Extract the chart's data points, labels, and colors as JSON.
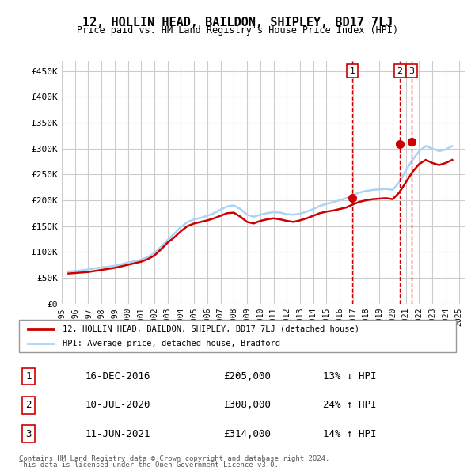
{
  "title": "12, HOLLIN HEAD, BAILDON, SHIPLEY, BD17 7LJ",
  "subtitle": "Price paid vs. HM Land Registry's House Price Index (HPI)",
  "ylabel_ticks": [
    "£0",
    "£50K",
    "£100K",
    "£150K",
    "£200K",
    "£250K",
    "£300K",
    "£350K",
    "£400K",
    "£450K"
  ],
  "ytick_values": [
    0,
    50000,
    100000,
    150000,
    200000,
    250000,
    300000,
    350000,
    400000,
    450000
  ],
  "ylim": [
    0,
    470000
  ],
  "xlim_start": 1995.0,
  "xlim_end": 2025.5,
  "grid_color": "#cccccc",
  "hpi_color": "#aad4f5",
  "price_color": "#cc0000",
  "transaction_color": "#cc0000",
  "dashed_line_color": "#cc0000",
  "background_color": "#ffffff",
  "legend_label_red": "12, HOLLIN HEAD, BAILDON, SHIPLEY, BD17 7LJ (detached house)",
  "legend_label_blue": "HPI: Average price, detached house, Bradford",
  "transactions": [
    {
      "label": "1",
      "date": "16-DEC-2016",
      "price": 205000,
      "hpi_diff": "13% ↓ HPI",
      "x": 2016.96
    },
    {
      "label": "2",
      "date": "10-JUL-2020",
      "price": 308000,
      "hpi_diff": "24% ↑ HPI",
      "x": 2020.53
    },
    {
      "label": "3",
      "date": "11-JUN-2021",
      "price": 314000,
      "hpi_diff": "14% ↑ HPI",
      "x": 2021.44
    }
  ],
  "footer_line1": "Contains HM Land Registry data © Crown copyright and database right 2024.",
  "footer_line2": "This data is licensed under the Open Government Licence v3.0.",
  "hpi_data": {
    "years": [
      1995.5,
      1996.0,
      1996.5,
      1997.0,
      1997.5,
      1998.0,
      1998.5,
      1999.0,
      1999.5,
      2000.0,
      2000.5,
      2001.0,
      2001.5,
      2002.0,
      2002.5,
      2003.0,
      2003.5,
      2004.0,
      2004.5,
      2005.0,
      2005.5,
      2006.0,
      2006.5,
      2007.0,
      2007.5,
      2008.0,
      2008.5,
      2009.0,
      2009.5,
      2010.0,
      2010.5,
      2011.0,
      2011.5,
      2012.0,
      2012.5,
      2013.0,
      2013.5,
      2014.0,
      2014.5,
      2015.0,
      2015.5,
      2016.0,
      2016.5,
      2017.0,
      2017.5,
      2018.0,
      2018.5,
      2019.0,
      2019.5,
      2020.0,
      2020.5,
      2021.0,
      2021.5,
      2022.0,
      2022.5,
      2023.0,
      2023.5,
      2024.0,
      2024.5
    ],
    "values": [
      62000,
      63000,
      64000,
      66000,
      68000,
      70000,
      71000,
      73000,
      76000,
      79000,
      82000,
      85000,
      90000,
      98000,
      110000,
      123000,
      135000,
      148000,
      158000,
      163000,
      166000,
      170000,
      175000,
      182000,
      188000,
      190000,
      183000,
      172000,
      168000,
      172000,
      175000,
      177000,
      176000,
      173000,
      172000,
      174000,
      178000,
      183000,
      189000,
      193000,
      196000,
      200000,
      204000,
      210000,
      215000,
      218000,
      220000,
      221000,
      222000,
      220000,
      235000,
      258000,
      278000,
      295000,
      305000,
      300000,
      295000,
      298000,
      305000
    ]
  },
  "price_data": {
    "years": [
      1995.5,
      1996.0,
      1996.5,
      1997.0,
      1997.5,
      1998.0,
      1998.5,
      1999.0,
      1999.5,
      2000.0,
      2000.5,
      2001.0,
      2001.5,
      2002.0,
      2002.5,
      2003.0,
      2003.5,
      2004.0,
      2004.5,
      2005.0,
      2005.5,
      2006.0,
      2006.5,
      2007.0,
      2007.5,
      2008.0,
      2008.5,
      2009.0,
      2009.5,
      2010.0,
      2010.5,
      2011.0,
      2011.5,
      2012.0,
      2012.5,
      2013.0,
      2013.5,
      2014.0,
      2014.5,
      2015.0,
      2015.5,
      2016.0,
      2016.5,
      2017.0,
      2017.5,
      2018.0,
      2018.5,
      2019.0,
      2019.5,
      2020.0,
      2020.5,
      2021.0,
      2021.5,
      2022.0,
      2022.5,
      2023.0,
      2023.5,
      2024.0,
      2024.5
    ],
    "values": [
      58000,
      59000,
      60000,
      61000,
      63000,
      65000,
      67000,
      69000,
      72000,
      75000,
      78000,
      81000,
      86000,
      93000,
      105000,
      118000,
      128000,
      140000,
      150000,
      155000,
      158000,
      161000,
      165000,
      170000,
      175000,
      176000,
      168000,
      158000,
      155000,
      160000,
      163000,
      165000,
      163000,
      160000,
      158000,
      161000,
      165000,
      170000,
      175000,
      178000,
      180000,
      183000,
      186000,
      192000,
      197000,
      200000,
      202000,
      203000,
      204000,
      202000,
      215000,
      235000,
      255000,
      270000,
      278000,
      272000,
      268000,
      272000,
      278000
    ]
  }
}
